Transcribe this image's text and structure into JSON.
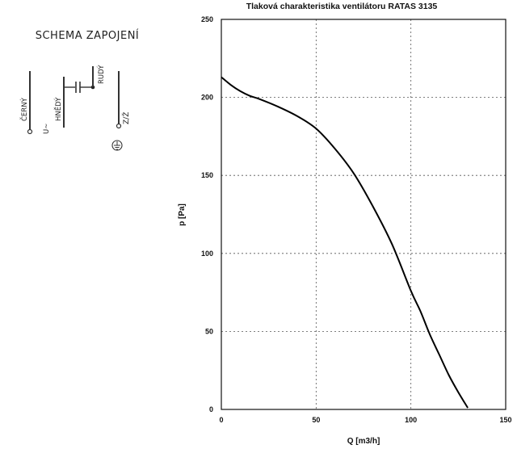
{
  "wiring": {
    "title": "SCHEMA ZAPOJENÍ",
    "wire_labels": [
      "ČERNÝ",
      "HNĚDÝ",
      "RUDÝ",
      "Z/Ž"
    ],
    "supply_label": "U~"
  },
  "chart_data": {
    "type": "line",
    "title": "Tlaková charakteristika ventilátoru RATAS 3135",
    "xlabel": "Q [m3/h]",
    "ylabel": "p [Pa]",
    "xlim": [
      0,
      150
    ],
    "ylim": [
      0,
      250
    ],
    "xticks": [
      0,
      50,
      100,
      150
    ],
    "yticks": [
      0,
      50,
      100,
      150,
      200,
      250
    ],
    "grid": true,
    "series": [
      {
        "color": "#000000",
        "x": [
          0,
          5,
          10,
          15,
          20,
          30,
          40,
          50,
          60,
          70,
          80,
          90,
          100,
          105,
          110,
          115,
          120,
          125,
          130
        ],
        "y": [
          213,
          208,
          204,
          201,
          199,
          194,
          188,
          180,
          167,
          151,
          130,
          106,
          76,
          63,
          48,
          35,
          22,
          11,
          1
        ]
      }
    ]
  }
}
